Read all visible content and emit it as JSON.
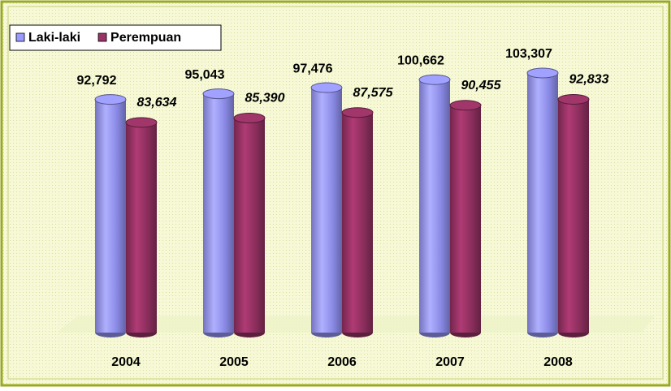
{
  "chart_data": {
    "type": "bar",
    "categories": [
      "2004",
      "2005",
      "2006",
      "2007",
      "2008"
    ],
    "series": [
      {
        "name": "Laki-laki",
        "color": "#9999ff",
        "values": [
          92792,
          95043,
          97476,
          100662,
          103307
        ],
        "value_labels": [
          "92,792",
          "95,043",
          "97,476",
          "100,662",
          "103,307"
        ]
      },
      {
        "name": "Perempuan",
        "color": "#993366",
        "values": [
          83634,
          85390,
          87575,
          90455,
          92833
        ],
        "value_labels": [
          "83,634",
          "85,390",
          "87,575",
          "90,455",
          "92,833"
        ]
      }
    ],
    "legend": "top-left"
  }
}
